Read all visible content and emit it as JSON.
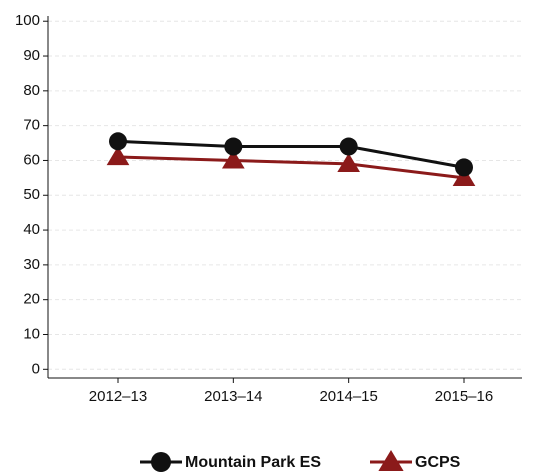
{
  "chart_data": {
    "type": "line",
    "categories": [
      "2012–13",
      "2013–14",
      "2014–15",
      "2015–16"
    ],
    "series": [
      {
        "name": "Mountain Park ES",
        "color": "#111111",
        "marker": "circle",
        "values": [
          65.5,
          64,
          64,
          58
        ]
      },
      {
        "name": "GCPS",
        "color": "#8b1a1a",
        "marker": "triangle",
        "values": [
          61,
          60,
          59,
          55
        ]
      }
    ],
    "ylim": [
      -2.5,
      101.5
    ],
    "yticks": [
      0,
      10,
      20,
      30,
      40,
      50,
      60,
      70,
      80,
      90,
      100
    ],
    "grid": true
  }
}
